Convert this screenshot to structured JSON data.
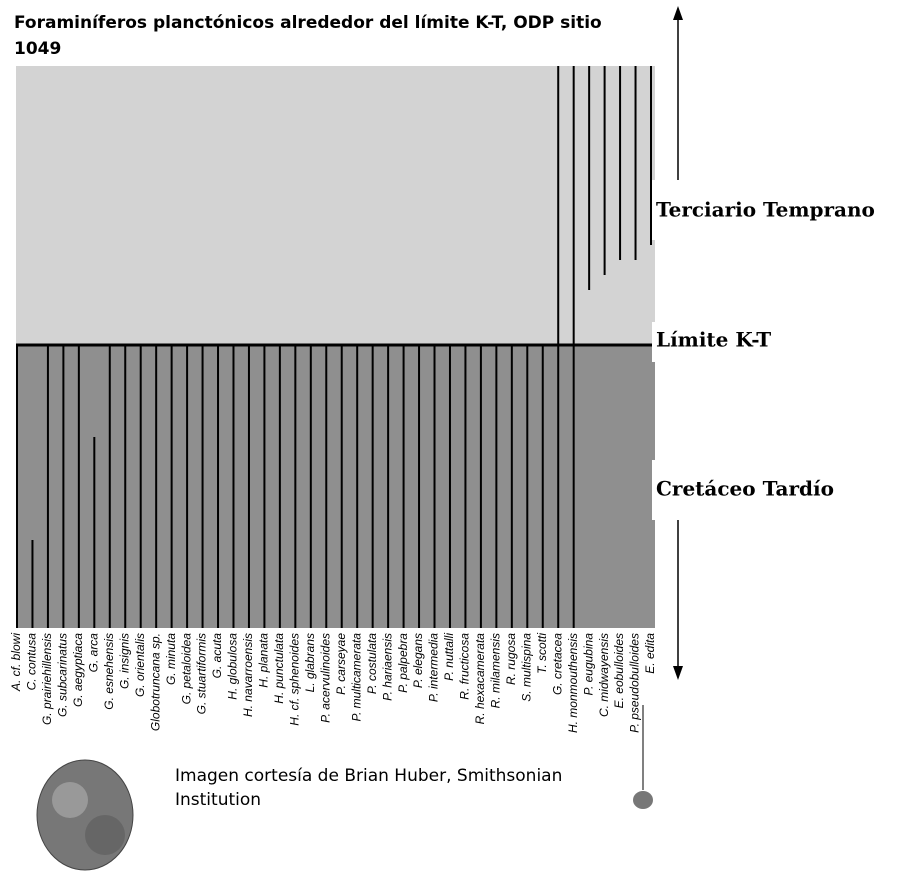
{
  "header": {
    "title": "Foraminíferos planctónicos alrededor del límite K-T, ODP sitio 1049"
  },
  "zones": {
    "upper": "Terciario Temprano",
    "boundary": "Límite K-T",
    "lower": "Cretáceo Tardío"
  },
  "species": [
    "A. cf. blowi",
    "C. contusa",
    "G. prairiehillensis",
    "G. subcarinatus",
    "G. aegyptiaca",
    "G. arca",
    "G. esnehensis",
    "G. insignis",
    "G. orientalis",
    "Globotruncana sp.",
    "G. minuta",
    "G. petaloidea",
    "G. stuartiformis",
    "G. acuta",
    "H. globulosa",
    "H. navarroensis",
    "H. planata",
    "H. punctulata",
    "H. cf. sphenoides",
    "L. glabrans",
    "P. acervulinoides",
    "P. carseyae",
    "P. multicamerata",
    "P. costulata",
    "P. hariaensis",
    "P. palpebra",
    "P. elegans",
    "P. intermedia",
    "P. nuttalli",
    "R. fructicosa",
    "R. hexacamerata",
    "R. milamensis",
    "R. rugosa",
    "S. multispina",
    "T. scotti",
    "G. cretacea",
    "H. monmouthensis",
    "P. eugubina",
    "C. midwayensis",
    "E. eobulloides",
    "P. pseudobulloides",
    "E. edita"
  ],
  "credit": "Imagen cortesía de Brian Huber, Smithsonian Institution"
}
